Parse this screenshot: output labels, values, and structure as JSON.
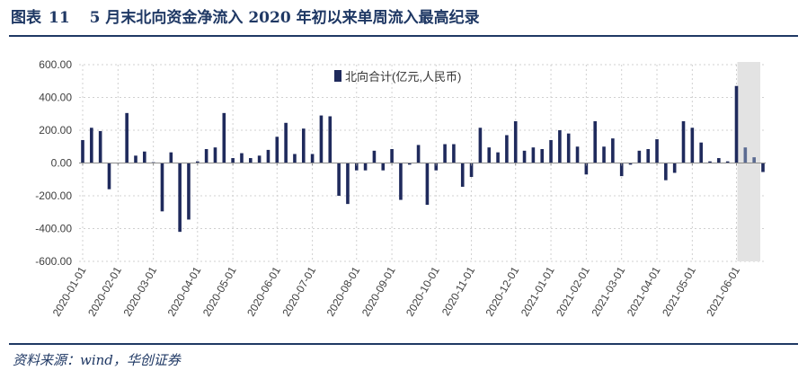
{
  "header": {
    "figure_label": "图表",
    "figure_number": "11",
    "title": "5 月末北向资金净流入 2020 年初以来单周流入最高纪录"
  },
  "footer": {
    "source": "资料来源：wind，华创证券"
  },
  "chart_data": {
    "type": "bar",
    "title": "5 月末北向资金净流入 2020 年初以来单周流入最高纪录",
    "xlabel": "",
    "ylabel": "",
    "ylim": [
      -600,
      600
    ],
    "y_ticks": [
      600,
      400,
      200,
      0,
      -200,
      -400,
      -600
    ],
    "y_tick_labels": [
      "600.00",
      "400.00",
      "200.00",
      "0.00",
      "-200.00",
      "-400.00",
      "-600.00"
    ],
    "x_tick_labels": [
      "2020-01-01",
      "2020-02-01",
      "2020-03-01",
      "2020-04-01",
      "2020-05-01",
      "2020-06-01",
      "2020-07-01",
      "2020-08-01",
      "2020-09-01",
      "2020-10-01",
      "2020-11-01",
      "2020-12-01",
      "2021-01-01",
      "2021-02-01",
      "2021-03-01",
      "2021-04-01",
      "2021-05-01",
      "2021-06-01"
    ],
    "x_tick_label_bar_index": [
      0,
      4,
      8,
      13,
      17,
      22,
      26,
      31,
      35,
      40,
      44,
      49,
      53,
      57,
      61,
      65,
      69,
      74
    ],
    "legend": {
      "label": "北向合计(亿元,人民币)",
      "position": "top-center"
    },
    "highlight": {
      "from_index": 75,
      "to_index": 76,
      "color": "#e3e3e3"
    },
    "bar_color": "#1f2a5c",
    "highlight_bar_color": "#5b6b92",
    "series": [
      {
        "name": "北向合计(亿元,人民币)",
        "values": [
          140,
          215,
          195,
          -160,
          0,
          305,
          45,
          70,
          5,
          -295,
          65,
          -420,
          -345,
          10,
          85,
          95,
          305,
          30,
          60,
          30,
          45,
          80,
          160,
          245,
          55,
          210,
          55,
          290,
          285,
          -200,
          -250,
          -45,
          -45,
          75,
          -45,
          85,
          -225,
          -10,
          110,
          -255,
          -45,
          115,
          115,
          -145,
          -85,
          215,
          95,
          65,
          170,
          255,
          75,
          95,
          85,
          140,
          200,
          180,
          100,
          -70,
          255,
          100,
          150,
          -80,
          -10,
          75,
          85,
          145,
          -105,
          -60,
          255,
          215,
          125,
          10,
          30,
          10,
          470,
          95,
          35,
          -55
        ]
      }
    ]
  }
}
